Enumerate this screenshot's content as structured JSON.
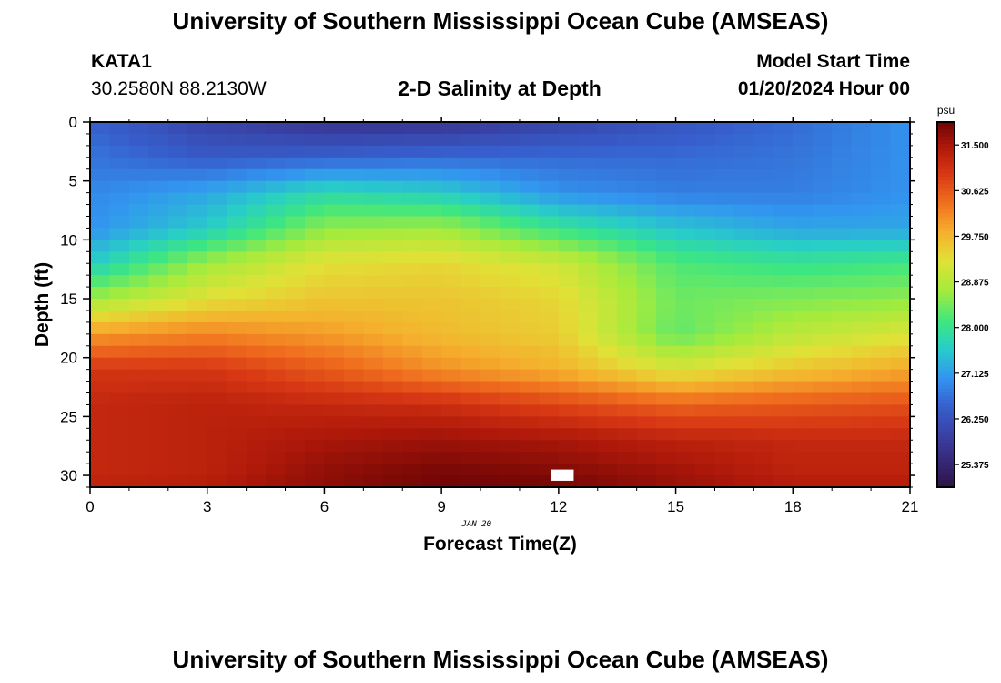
{
  "header": {
    "title": "University of Southern Mississippi Ocean Cube (AMSEAS)",
    "station": "KATA1",
    "coords": "30.2580N  88.2130W",
    "subtitle": "2-D Salinity at Depth",
    "model_start_label": "Model Start Time",
    "model_start_value": "01/20/2024 Hour 00"
  },
  "footer": {
    "title": "University of Southern Mississippi Ocean Cube (AMSEAS)"
  },
  "chart_data": {
    "type": "heatmap",
    "title": "2-D Salinity at Depth",
    "xlabel": "Forecast Time(Z)",
    "ylabel": "Depth (ft)",
    "x_date_label": "JAN 20",
    "xlim": [
      0,
      21
    ],
    "ylim": [
      0,
      31
    ],
    "x_ticks": [
      0,
      3,
      6,
      9,
      12,
      15,
      18,
      21
    ],
    "y_ticks": [
      0,
      5,
      10,
      15,
      20,
      25,
      30
    ],
    "colorbar": {
      "unit": "psu",
      "range": [
        24.94,
        31.94
      ],
      "ticks": [
        "31.500",
        "30.625",
        "29.750",
        "28.875",
        "28.000",
        "27.125",
        "26.250",
        "25.375"
      ]
    },
    "x_hours": [
      0,
      3,
      6,
      9,
      12,
      15,
      18,
      21
    ],
    "depth_ft": [
      0,
      3,
      6,
      9,
      12,
      15,
      18,
      21,
      24,
      27,
      30,
      31
    ],
    "salinity_psu": [
      [
        26.5,
        26.0,
        25.7,
        25.7,
        26.0,
        26.3,
        26.6,
        27.0
      ],
      [
        26.7,
        26.4,
        26.5,
        26.6,
        26.6,
        26.6,
        26.7,
        27.0
      ],
      [
        26.9,
        27.2,
        27.8,
        27.6,
        27.0,
        26.8,
        26.8,
        27.0
      ],
      [
        27.0,
        27.6,
        28.6,
        28.7,
        28.0,
        27.5,
        27.2,
        27.2
      ],
      [
        27.6,
        28.7,
        29.3,
        29.4,
        29.1,
        28.2,
        28.0,
        28.1
      ],
      [
        28.7,
        29.3,
        29.6,
        29.6,
        29.4,
        28.4,
        28.5,
        28.6
      ],
      [
        30.0,
        30.2,
        30.0,
        29.7,
        29.5,
        28.3,
        28.9,
        29.2
      ],
      [
        31.0,
        31.0,
        30.6,
        30.1,
        29.8,
        29.2,
        29.6,
        29.9
      ],
      [
        31.2,
        31.3,
        31.2,
        31.1,
        30.8,
        30.5,
        30.6,
        30.7
      ],
      [
        31.2,
        31.3,
        31.5,
        31.6,
        31.5,
        31.3,
        31.2,
        31.2
      ],
      [
        31.2,
        31.3,
        31.7,
        31.9,
        31.8,
        31.6,
        31.3,
        31.3
      ],
      [
        31.3,
        31.4,
        31.7,
        31.9,
        31.9,
        31.6,
        31.4,
        31.4
      ]
    ]
  }
}
